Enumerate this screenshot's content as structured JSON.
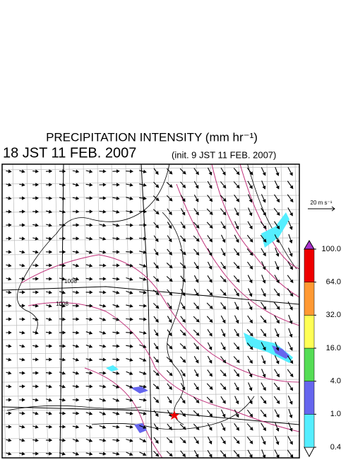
{
  "header": {
    "title": "PRECIPITATION INTENSITY (mm hr⁻¹)",
    "valid_time": "18 JST 11 FEB. 2007",
    "init_time": "(init. 9 JST 11 FEB. 2007)"
  },
  "wind_scale": "20 m s⁻¹",
  "isobar_labels": [
    "1008",
    "1008"
  ],
  "colorbar": {
    "ticks": [
      {
        "value": 0.4,
        "label": "0.4"
      },
      {
        "value": 1,
        "label": "1.0"
      },
      {
        "value": 4,
        "label": "4.0"
      },
      {
        "value": 16,
        "label": "16.0"
      },
      {
        "value": 32,
        "label": "32.0"
      },
      {
        "value": 64,
        "label": "64.0"
      },
      {
        "value": 100,
        "label": "100.0"
      }
    ],
    "colors": [
      "#ffffff",
      "#55eeff",
      "#6666ee",
      "#55dd55",
      "#ffff55",
      "#ff9933",
      "#ee0000",
      "#aa33cc"
    ]
  }
}
